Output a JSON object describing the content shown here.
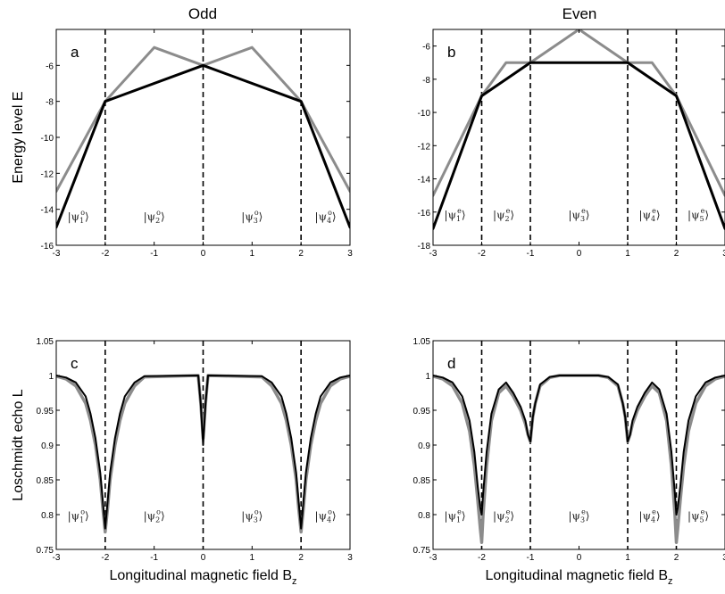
{
  "figure": {
    "col_titles": [
      "Odd",
      "Even"
    ]
  },
  "chart_data": [
    {
      "panel": "a",
      "type": "line",
      "title": "Odd",
      "xlabel": "",
      "ylabel": "Energy level E",
      "xlim": [
        -3,
        3
      ],
      "ylim": [
        -16,
        -4
      ],
      "xticks": [
        -3,
        -2,
        -1,
        0,
        1,
        2,
        3
      ],
      "yticks": [
        -16,
        -14,
        -12,
        -10,
        -8,
        -6
      ],
      "grid": false,
      "vlines": [
        -2,
        0,
        2
      ],
      "series": [
        {
          "color": "#8c8c8c",
          "width": 3,
          "x": [
            -3,
            -2,
            -1,
            0,
            1,
            2,
            3
          ],
          "y": [
            -13,
            -8,
            -5,
            -6,
            -5,
            -8,
            -13
          ]
        },
        {
          "color": "#000000",
          "width": 3,
          "x": [
            -3,
            -2,
            0,
            2,
            3
          ],
          "y": [
            -15,
            -8,
            -6,
            -8,
            -15
          ]
        }
      ],
      "regions": [
        {
          "x": -2.55,
          "sub": "1",
          "sup": "o"
        },
        {
          "x": -1.0,
          "sub": "2",
          "sup": "o"
        },
        {
          "x": 1.0,
          "sub": "3",
          "sup": "o"
        },
        {
          "x": 2.5,
          "sub": "4",
          "sup": "o"
        }
      ],
      "region_y": -14.6
    },
    {
      "panel": "b",
      "type": "line",
      "title": "Even",
      "xlabel": "",
      "ylabel": "",
      "xlim": [
        -3,
        3
      ],
      "ylim": [
        -18,
        -5
      ],
      "xticks": [
        -3,
        -2,
        -1,
        0,
        1,
        2,
        3
      ],
      "yticks": [
        -18,
        -16,
        -14,
        -12,
        -10,
        -8,
        -6
      ],
      "grid": false,
      "vlines": [
        -2,
        -1,
        1,
        2
      ],
      "series": [
        {
          "color": "#8c8c8c",
          "width": 3,
          "x": [
            -3,
            -2,
            -1.5,
            -1,
            0,
            1,
            1.5,
            2,
            3
          ],
          "y": [
            -15,
            -9,
            -7,
            -7,
            -5,
            -7,
            -7,
            -9,
            -15
          ]
        },
        {
          "color": "#000000",
          "width": 3,
          "x": [
            -3,
            -2,
            -1,
            1,
            2,
            3
          ],
          "y": [
            -17,
            -9,
            -7,
            -7,
            -9,
            -17
          ]
        }
      ],
      "regions": [
        {
          "x": -2.55,
          "sub": "1",
          "sup": "e"
        },
        {
          "x": -1.55,
          "sub": "2",
          "sup": "e"
        },
        {
          "x": 0.0,
          "sub": "3",
          "sup": "e"
        },
        {
          "x": 1.45,
          "sub": "4",
          "sup": "e"
        },
        {
          "x": 2.45,
          "sub": "5",
          "sup": "e"
        }
      ],
      "region_y": -16.4
    },
    {
      "panel": "c",
      "type": "line",
      "title": "",
      "xlabel": "Longitudinal magnetic field B_z",
      "ylabel": "Loschmidt echo L",
      "xlim": [
        -3,
        3
      ],
      "ylim": [
        0.75,
        1.05
      ],
      "xticks": [
        -3,
        -2,
        -1,
        0,
        1,
        2,
        3
      ],
      "yticks": [
        0.75,
        0.8,
        0.85,
        0.9,
        0.95,
        1,
        1.05
      ],
      "grid": false,
      "vlines": [
        -2,
        0,
        2
      ],
      "series": [
        {
          "color": "#8c8c8c",
          "width": 3.5,
          "x": [
            -3,
            -2.8,
            -2.6,
            -2.4,
            -2.3,
            -2.2,
            -2.1,
            -2.05,
            -2,
            -1.95,
            -1.9,
            -1.8,
            -1.7,
            -1.6,
            -1.4,
            -1.2,
            -0.1,
            -0.05,
            0,
            0.05,
            0.1,
            1.2,
            1.4,
            1.6,
            1.7,
            1.8,
            1.9,
            1.95,
            2,
            2.05,
            2.1,
            2.2,
            2.3,
            2.4,
            2.6,
            2.8,
            3
          ],
          "y": [
            0.999,
            0.995,
            0.985,
            0.96,
            0.935,
            0.9,
            0.85,
            0.81,
            0.775,
            0.81,
            0.85,
            0.9,
            0.935,
            0.96,
            0.985,
            0.998,
            1.0,
            0.96,
            0.91,
            0.96,
            1.0,
            0.998,
            0.985,
            0.96,
            0.935,
            0.9,
            0.85,
            0.81,
            0.775,
            0.81,
            0.85,
            0.9,
            0.935,
            0.96,
            0.985,
            0.995,
            0.999
          ]
        },
        {
          "color": "#000000",
          "width": 2,
          "x": [
            -3,
            -2.8,
            -2.6,
            -2.4,
            -2.3,
            -2.2,
            -2.1,
            -2.05,
            -2,
            -1.95,
            -1.9,
            -1.8,
            -1.7,
            -1.6,
            -1.4,
            -1.2,
            -0.1,
            -0.05,
            0,
            0.05,
            0.1,
            1.2,
            1.4,
            1.6,
            1.7,
            1.8,
            1.9,
            1.95,
            2,
            2.05,
            2.1,
            2.2,
            2.3,
            2.4,
            2.6,
            2.8,
            3
          ],
          "y": [
            1.0,
            0.997,
            0.99,
            0.97,
            0.945,
            0.91,
            0.86,
            0.82,
            0.78,
            0.82,
            0.86,
            0.91,
            0.945,
            0.97,
            0.99,
            0.999,
            1.0,
            0.96,
            0.9,
            0.96,
            1.0,
            0.999,
            0.99,
            0.97,
            0.945,
            0.91,
            0.86,
            0.82,
            0.78,
            0.82,
            0.86,
            0.91,
            0.945,
            0.97,
            0.99,
            0.997,
            1.0
          ]
        }
      ],
      "regions": [
        {
          "x": -2.55,
          "sub": "1",
          "sup": "o"
        },
        {
          "x": -1.0,
          "sub": "2",
          "sup": "o"
        },
        {
          "x": 1.0,
          "sub": "3",
          "sup": "o"
        },
        {
          "x": 2.5,
          "sub": "4",
          "sup": "o"
        }
      ],
      "region_y": 0.793
    },
    {
      "panel": "d",
      "type": "line",
      "title": "",
      "xlabel": "Longitudinal magnetic field B_z",
      "ylabel": "",
      "xlim": [
        -3,
        3
      ],
      "ylim": [
        0.75,
        1.05
      ],
      "xticks": [
        -3,
        -2,
        -1,
        0,
        1,
        2,
        3
      ],
      "yticks": [
        0.75,
        0.8,
        0.85,
        0.9,
        0.95,
        1,
        1.05
      ],
      "grid": false,
      "vlines": [
        -2,
        -1,
        1,
        2
      ],
      "series": [
        {
          "color": "#8c8c8c",
          "width": 3.5,
          "x": [
            -3,
            -2.8,
            -2.6,
            -2.4,
            -2.25,
            -2.15,
            -2.08,
            -2.03,
            -2,
            -1.97,
            -1.9,
            -1.8,
            -1.65,
            -1.5,
            -1.35,
            -1.2,
            -1.1,
            -1.05,
            -1,
            -0.95,
            -0.9,
            -0.8,
            -0.6,
            -0.4,
            0,
            0.4,
            0.6,
            0.8,
            0.9,
            0.95,
            1,
            1.05,
            1.1,
            1.2,
            1.35,
            1.5,
            1.65,
            1.8,
            1.9,
            1.97,
            2,
            2.03,
            2.08,
            2.15,
            2.25,
            2.4,
            2.6,
            2.8,
            3
          ],
          "y": [
            0.999,
            0.995,
            0.985,
            0.96,
            0.92,
            0.87,
            0.82,
            0.78,
            0.76,
            0.8,
            0.87,
            0.935,
            0.975,
            0.985,
            0.97,
            0.95,
            0.93,
            0.915,
            0.905,
            0.94,
            0.96,
            0.985,
            0.997,
            1.0,
            1.0,
            1.0,
            0.997,
            0.985,
            0.96,
            0.94,
            0.905,
            0.915,
            0.93,
            0.95,
            0.97,
            0.985,
            0.975,
            0.935,
            0.87,
            0.8,
            0.76,
            0.78,
            0.82,
            0.87,
            0.92,
            0.96,
            0.985,
            0.995,
            0.999
          ]
        },
        {
          "color": "#000000",
          "width": 2,
          "x": [
            -3,
            -2.8,
            -2.6,
            -2.4,
            -2.25,
            -2.15,
            -2.08,
            -2.03,
            -2,
            -1.97,
            -1.9,
            -1.8,
            -1.65,
            -1.5,
            -1.35,
            -1.2,
            -1.1,
            -1.05,
            -1,
            -0.95,
            -0.9,
            -0.8,
            -0.6,
            -0.4,
            0,
            0.4,
            0.6,
            0.8,
            0.9,
            0.95,
            1,
            1.05,
            1.1,
            1.2,
            1.35,
            1.5,
            1.65,
            1.8,
            1.9,
            1.97,
            2,
            2.03,
            2.08,
            2.15,
            2.25,
            2.4,
            2.6,
            2.8,
            3
          ],
          "y": [
            1.0,
            0.997,
            0.99,
            0.97,
            0.935,
            0.89,
            0.84,
            0.81,
            0.8,
            0.83,
            0.89,
            0.945,
            0.98,
            0.99,
            0.975,
            0.955,
            0.935,
            0.915,
            0.905,
            0.94,
            0.96,
            0.987,
            0.998,
            1.0,
            1.0,
            1.0,
            0.998,
            0.987,
            0.96,
            0.94,
            0.905,
            0.915,
            0.935,
            0.955,
            0.975,
            0.99,
            0.98,
            0.945,
            0.89,
            0.83,
            0.8,
            0.81,
            0.84,
            0.89,
            0.935,
            0.97,
            0.99,
            0.997,
            1.0
          ]
        }
      ],
      "regions": [
        {
          "x": -2.55,
          "sub": "1",
          "sup": "e"
        },
        {
          "x": -1.55,
          "sub": "2",
          "sup": "e"
        },
        {
          "x": 0.0,
          "sub": "3",
          "sup": "e"
        },
        {
          "x": 1.45,
          "sub": "4",
          "sup": "e"
        },
        {
          "x": 2.45,
          "sub": "5",
          "sup": "e"
        }
      ],
      "region_y": 0.793
    }
  ]
}
